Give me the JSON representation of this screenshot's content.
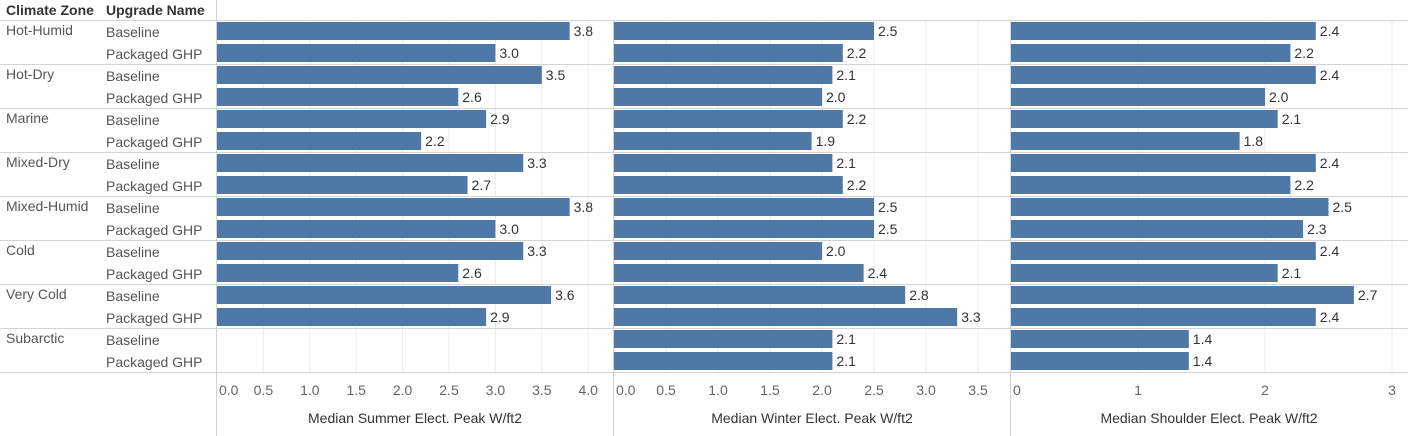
{
  "header": {
    "col1": "Climate Zone",
    "col2": "Upgrade Name"
  },
  "chart_data": {
    "type": "bar",
    "orientation": "horizontal",
    "zones": [
      "Hot-Humid",
      "Hot-Dry",
      "Marine",
      "Mixed-Dry",
      "Mixed-Humid",
      "Cold",
      "Very Cold",
      "Subarctic"
    ],
    "upgrades": [
      "Baseline",
      "Packaged GHP"
    ],
    "bar_color": "#4e79a7",
    "grid": true,
    "panels": [
      {
        "xlabel": "Median Summer Elect. Peak W/ft2",
        "xlim": [
          0,
          4.2
        ],
        "ticks": [
          "0.0",
          "0.5",
          "1.0",
          "1.5",
          "2.0",
          "2.5",
          "3.0",
          "3.5",
          "4.0"
        ],
        "tick_values": [
          0,
          0.5,
          1,
          1.5,
          2,
          2.5,
          3,
          3.5,
          4
        ],
        "values": [
          [
            "3.8",
            "3.0"
          ],
          [
            "3.5",
            "2.6"
          ],
          [
            "2.9",
            "2.2"
          ],
          [
            "3.3",
            "2.7"
          ],
          [
            "3.8",
            "3.0"
          ],
          [
            "3.3",
            "2.6"
          ],
          [
            "3.6",
            "2.9"
          ],
          [
            null,
            null
          ]
        ]
      },
      {
        "xlabel": "Median Winter Elect. Peak W/ft2",
        "xlim": [
          0,
          3.65
        ],
        "ticks": [
          "0.0",
          "0.5",
          "1.0",
          "1.5",
          "2.0",
          "2.5",
          "3.0",
          "3.5"
        ],
        "tick_values": [
          0,
          0.5,
          1,
          1.5,
          2,
          2.5,
          3,
          3.5
        ],
        "values": [
          [
            "2.5",
            "2.2"
          ],
          [
            "2.1",
            "2.0"
          ],
          [
            "2.2",
            "1.9"
          ],
          [
            "2.1",
            "2.2"
          ],
          [
            "2.5",
            "2.5"
          ],
          [
            "2.0",
            "2.4"
          ],
          [
            "2.8",
            "3.3"
          ],
          [
            "2.1",
            "2.1"
          ]
        ]
      },
      {
        "xlabel": "Median Shoulder Elect. Peak W/ft2",
        "xlim": [
          0,
          3.06
        ],
        "ticks": [
          "0",
          "1",
          "2",
          "3"
        ],
        "tick_values": [
          0,
          1,
          2,
          3
        ],
        "values": [
          [
            "2.4",
            "2.2"
          ],
          [
            "2.4",
            "2.0"
          ],
          [
            "2.1",
            "1.8"
          ],
          [
            "2.4",
            "2.2"
          ],
          [
            "2.5",
            "2.3"
          ],
          [
            "2.4",
            "2.1"
          ],
          [
            "2.7",
            "2.4"
          ],
          [
            "1.4",
            "1.4"
          ]
        ]
      }
    ]
  }
}
